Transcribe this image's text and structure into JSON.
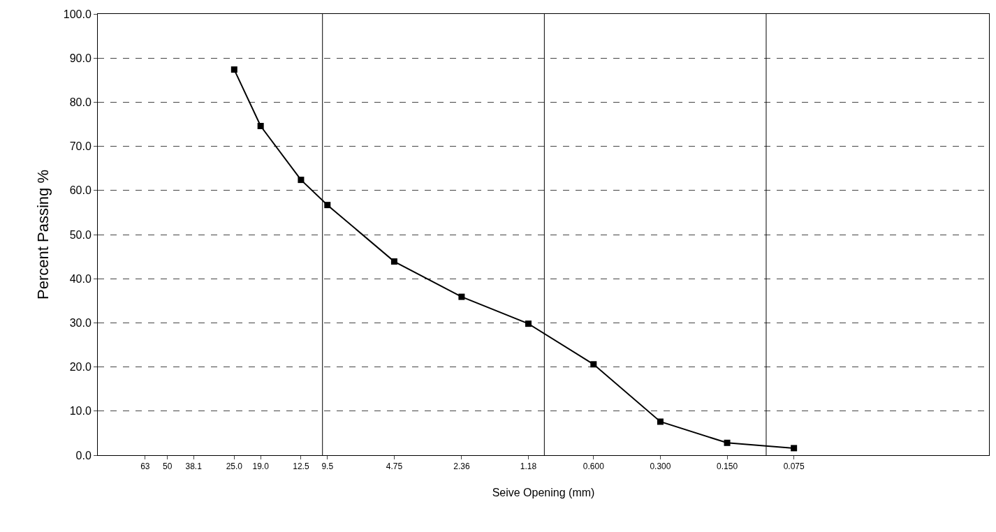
{
  "chart_data": {
    "type": "line",
    "xlabel": "Seive Opening (mm)",
    "ylabel": "Percent Passing %",
    "x": [
      25.0,
      19.0,
      12.5,
      9.5,
      4.75,
      2.36,
      1.18,
      0.6,
      0.3,
      0.15,
      0.075
    ],
    "series": [
      {
        "color": "#000000",
        "values": [
          87.4,
          74.6,
          62.4,
          56.7,
          43.9,
          35.9,
          29.8,
          20.6,
          7.6,
          2.8,
          1.6
        ]
      }
    ],
    "log": "x",
    "xlim": [
      103,
      0.0099
    ],
    "xticks": [
      {
        "value": 63,
        "label": "63"
      },
      {
        "value": 50,
        "label": "50"
      },
      {
        "value": 38.1,
        "label": "38.1"
      },
      {
        "value": 25,
        "label": "25.0"
      },
      {
        "value": 19,
        "label": "19.0"
      },
      {
        "value": 12.5,
        "label": "12.5"
      },
      {
        "value": 9.5,
        "label": "9.5"
      },
      {
        "value": 4.75,
        "label": "4.75"
      },
      {
        "value": 2.36,
        "label": "2.36"
      },
      {
        "value": 1.18,
        "label": "1.18"
      },
      {
        "value": 0.6,
        "label": "0.600"
      },
      {
        "value": 0.3,
        "label": "0.300"
      },
      {
        "value": 0.15,
        "label": "0.150"
      },
      {
        "value": 0.075,
        "label": "0.075"
      }
    ],
    "ylim": [
      0,
      100
    ],
    "yticks": [
      {
        "value": 0,
        "label": "0.0"
      },
      {
        "value": 10,
        "label": "10.0"
      },
      {
        "value": 20,
        "label": "20.0"
      },
      {
        "value": 30,
        "label": "30.0"
      },
      {
        "value": 40,
        "label": "40.0"
      },
      {
        "value": 50,
        "label": "50.0"
      },
      {
        "value": 60,
        "label": "60.0"
      },
      {
        "value": 70,
        "label": "70.0"
      },
      {
        "value": 80,
        "label": "80.0"
      },
      {
        "value": 90,
        "label": "90.0"
      },
      {
        "value": 100,
        "label": "100.0"
      }
    ],
    "grid": "y",
    "marker": "square",
    "line_style": "solid",
    "ref_lines": [
      {
        "axis": "x",
        "value": 10,
        "color": "#000000"
      },
      {
        "axis": "x",
        "value": 1,
        "color": "#000000"
      },
      {
        "axis": "x",
        "value": 0.1,
        "color": "#000000"
      }
    ]
  }
}
